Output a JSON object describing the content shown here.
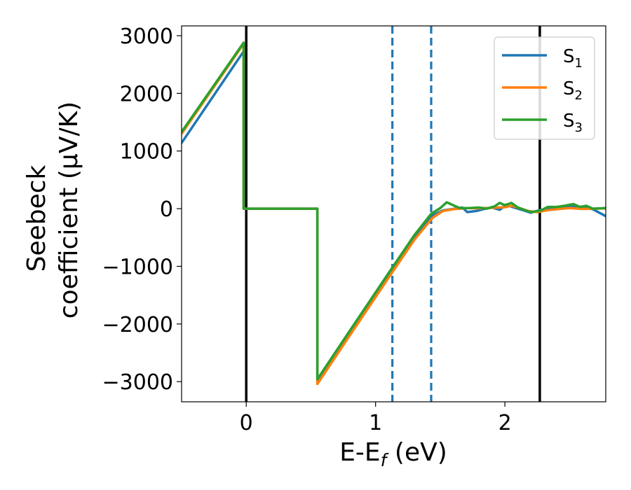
{
  "chart_data": {
    "type": "line",
    "xlabel": {
      "main": "E-E",
      "sub": "f",
      "tail": " (eV)"
    },
    "ylabel": {
      "line1": "Seebeck",
      "line2": "coefficient  (μV/K)"
    },
    "xlim": [
      -0.5,
      2.78
    ],
    "ylim": [
      -3350,
      3170
    ],
    "xticks": [
      {
        "value": 0,
        "label": "0"
      },
      {
        "value": 1,
        "label": "1"
      },
      {
        "value": 2,
        "label": "2"
      }
    ],
    "yticks": [
      {
        "value": 3000,
        "label": "3000"
      },
      {
        "value": 2000,
        "label": "2000"
      },
      {
        "value": 1000,
        "label": "1000"
      },
      {
        "value": 0,
        "label": "0"
      },
      {
        "value": -1000,
        "label": "−1000"
      },
      {
        "value": -2000,
        "label": "−2000"
      },
      {
        "value": -3000,
        "label": "−3000"
      }
    ],
    "vertical_lines": [
      {
        "x": 0.0,
        "style": "solid",
        "color": "#000000"
      },
      {
        "x": 2.27,
        "style": "solid",
        "color": "#000000"
      },
      {
        "x": 1.13,
        "style": "dashed",
        "color": "#1f77b4"
      },
      {
        "x": 1.43,
        "style": "dashed",
        "color": "#1f77b4"
      }
    ],
    "legend_position": "top-right",
    "series": [
      {
        "name": "S",
        "sub": "1",
        "color": "#1f77b4",
        "points": [
          [
            -0.5,
            1140
          ],
          [
            -0.02,
            2730
          ],
          [
            -0.02,
            0
          ],
          [
            0.55,
            0
          ],
          [
            0.55,
            -3020
          ],
          [
            0.8,
            -2180
          ],
          [
            1.1,
            -1180
          ],
          [
            1.3,
            -520
          ],
          [
            1.44,
            -120
          ],
          [
            1.52,
            -30
          ],
          [
            1.6,
            -5
          ],
          [
            1.67,
            20
          ],
          [
            1.71,
            -60
          ],
          [
            1.78,
            -40
          ],
          [
            1.85,
            0
          ],
          [
            1.9,
            20
          ],
          [
            1.96,
            -20
          ],
          [
            2.01,
            70
          ],
          [
            2.07,
            20
          ],
          [
            2.13,
            -20
          ],
          [
            2.2,
            -70
          ],
          [
            2.28,
            -20
          ],
          [
            2.35,
            10
          ],
          [
            2.42,
            20
          ],
          [
            2.5,
            40
          ],
          [
            2.6,
            20
          ],
          [
            2.68,
            -10
          ],
          [
            2.78,
            -130
          ]
        ]
      },
      {
        "name": "S",
        "sub": "2",
        "color": "#ff7f0e",
        "points": [
          [
            -0.5,
            1300
          ],
          [
            -0.02,
            2860
          ],
          [
            -0.02,
            0
          ],
          [
            0.55,
            0
          ],
          [
            0.55,
            -3040
          ],
          [
            0.8,
            -2200
          ],
          [
            1.1,
            -1200
          ],
          [
            1.3,
            -540
          ],
          [
            1.44,
            -160
          ],
          [
            1.52,
            -40
          ],
          [
            1.6,
            -10
          ],
          [
            1.7,
            10
          ],
          [
            1.8,
            5
          ],
          [
            1.9,
            15
          ],
          [
            2.0,
            25
          ],
          [
            2.05,
            50
          ],
          [
            2.1,
            20
          ],
          [
            2.18,
            -40
          ],
          [
            2.25,
            -60
          ],
          [
            2.32,
            -30
          ],
          [
            2.4,
            -10
          ],
          [
            2.5,
            10
          ],
          [
            2.6,
            -5
          ],
          [
            2.7,
            0
          ],
          [
            2.78,
            5
          ]
        ]
      },
      {
        "name": "S",
        "sub": "3",
        "color": "#2ca02c",
        "points": [
          [
            -0.5,
            1330
          ],
          [
            -0.02,
            2880
          ],
          [
            -0.02,
            0
          ],
          [
            0.55,
            0
          ],
          [
            0.55,
            -2960
          ],
          [
            0.8,
            -2120
          ],
          [
            1.1,
            -1120
          ],
          [
            1.3,
            -460
          ],
          [
            1.43,
            -90
          ],
          [
            1.5,
            10
          ],
          [
            1.55,
            110
          ],
          [
            1.6,
            60
          ],
          [
            1.65,
            10
          ],
          [
            1.72,
            10
          ],
          [
            1.8,
            20
          ],
          [
            1.86,
            0
          ],
          [
            1.92,
            40
          ],
          [
            1.96,
            100
          ],
          [
            2.0,
            60
          ],
          [
            2.05,
            100
          ],
          [
            2.1,
            20
          ],
          [
            2.15,
            -20
          ],
          [
            2.2,
            -60
          ],
          [
            2.28,
            -30
          ],
          [
            2.33,
            30
          ],
          [
            2.4,
            30
          ],
          [
            2.46,
            50
          ],
          [
            2.53,
            80
          ],
          [
            2.58,
            30
          ],
          [
            2.63,
            50
          ],
          [
            2.68,
            0
          ],
          [
            2.78,
            10
          ]
        ]
      }
    ]
  }
}
